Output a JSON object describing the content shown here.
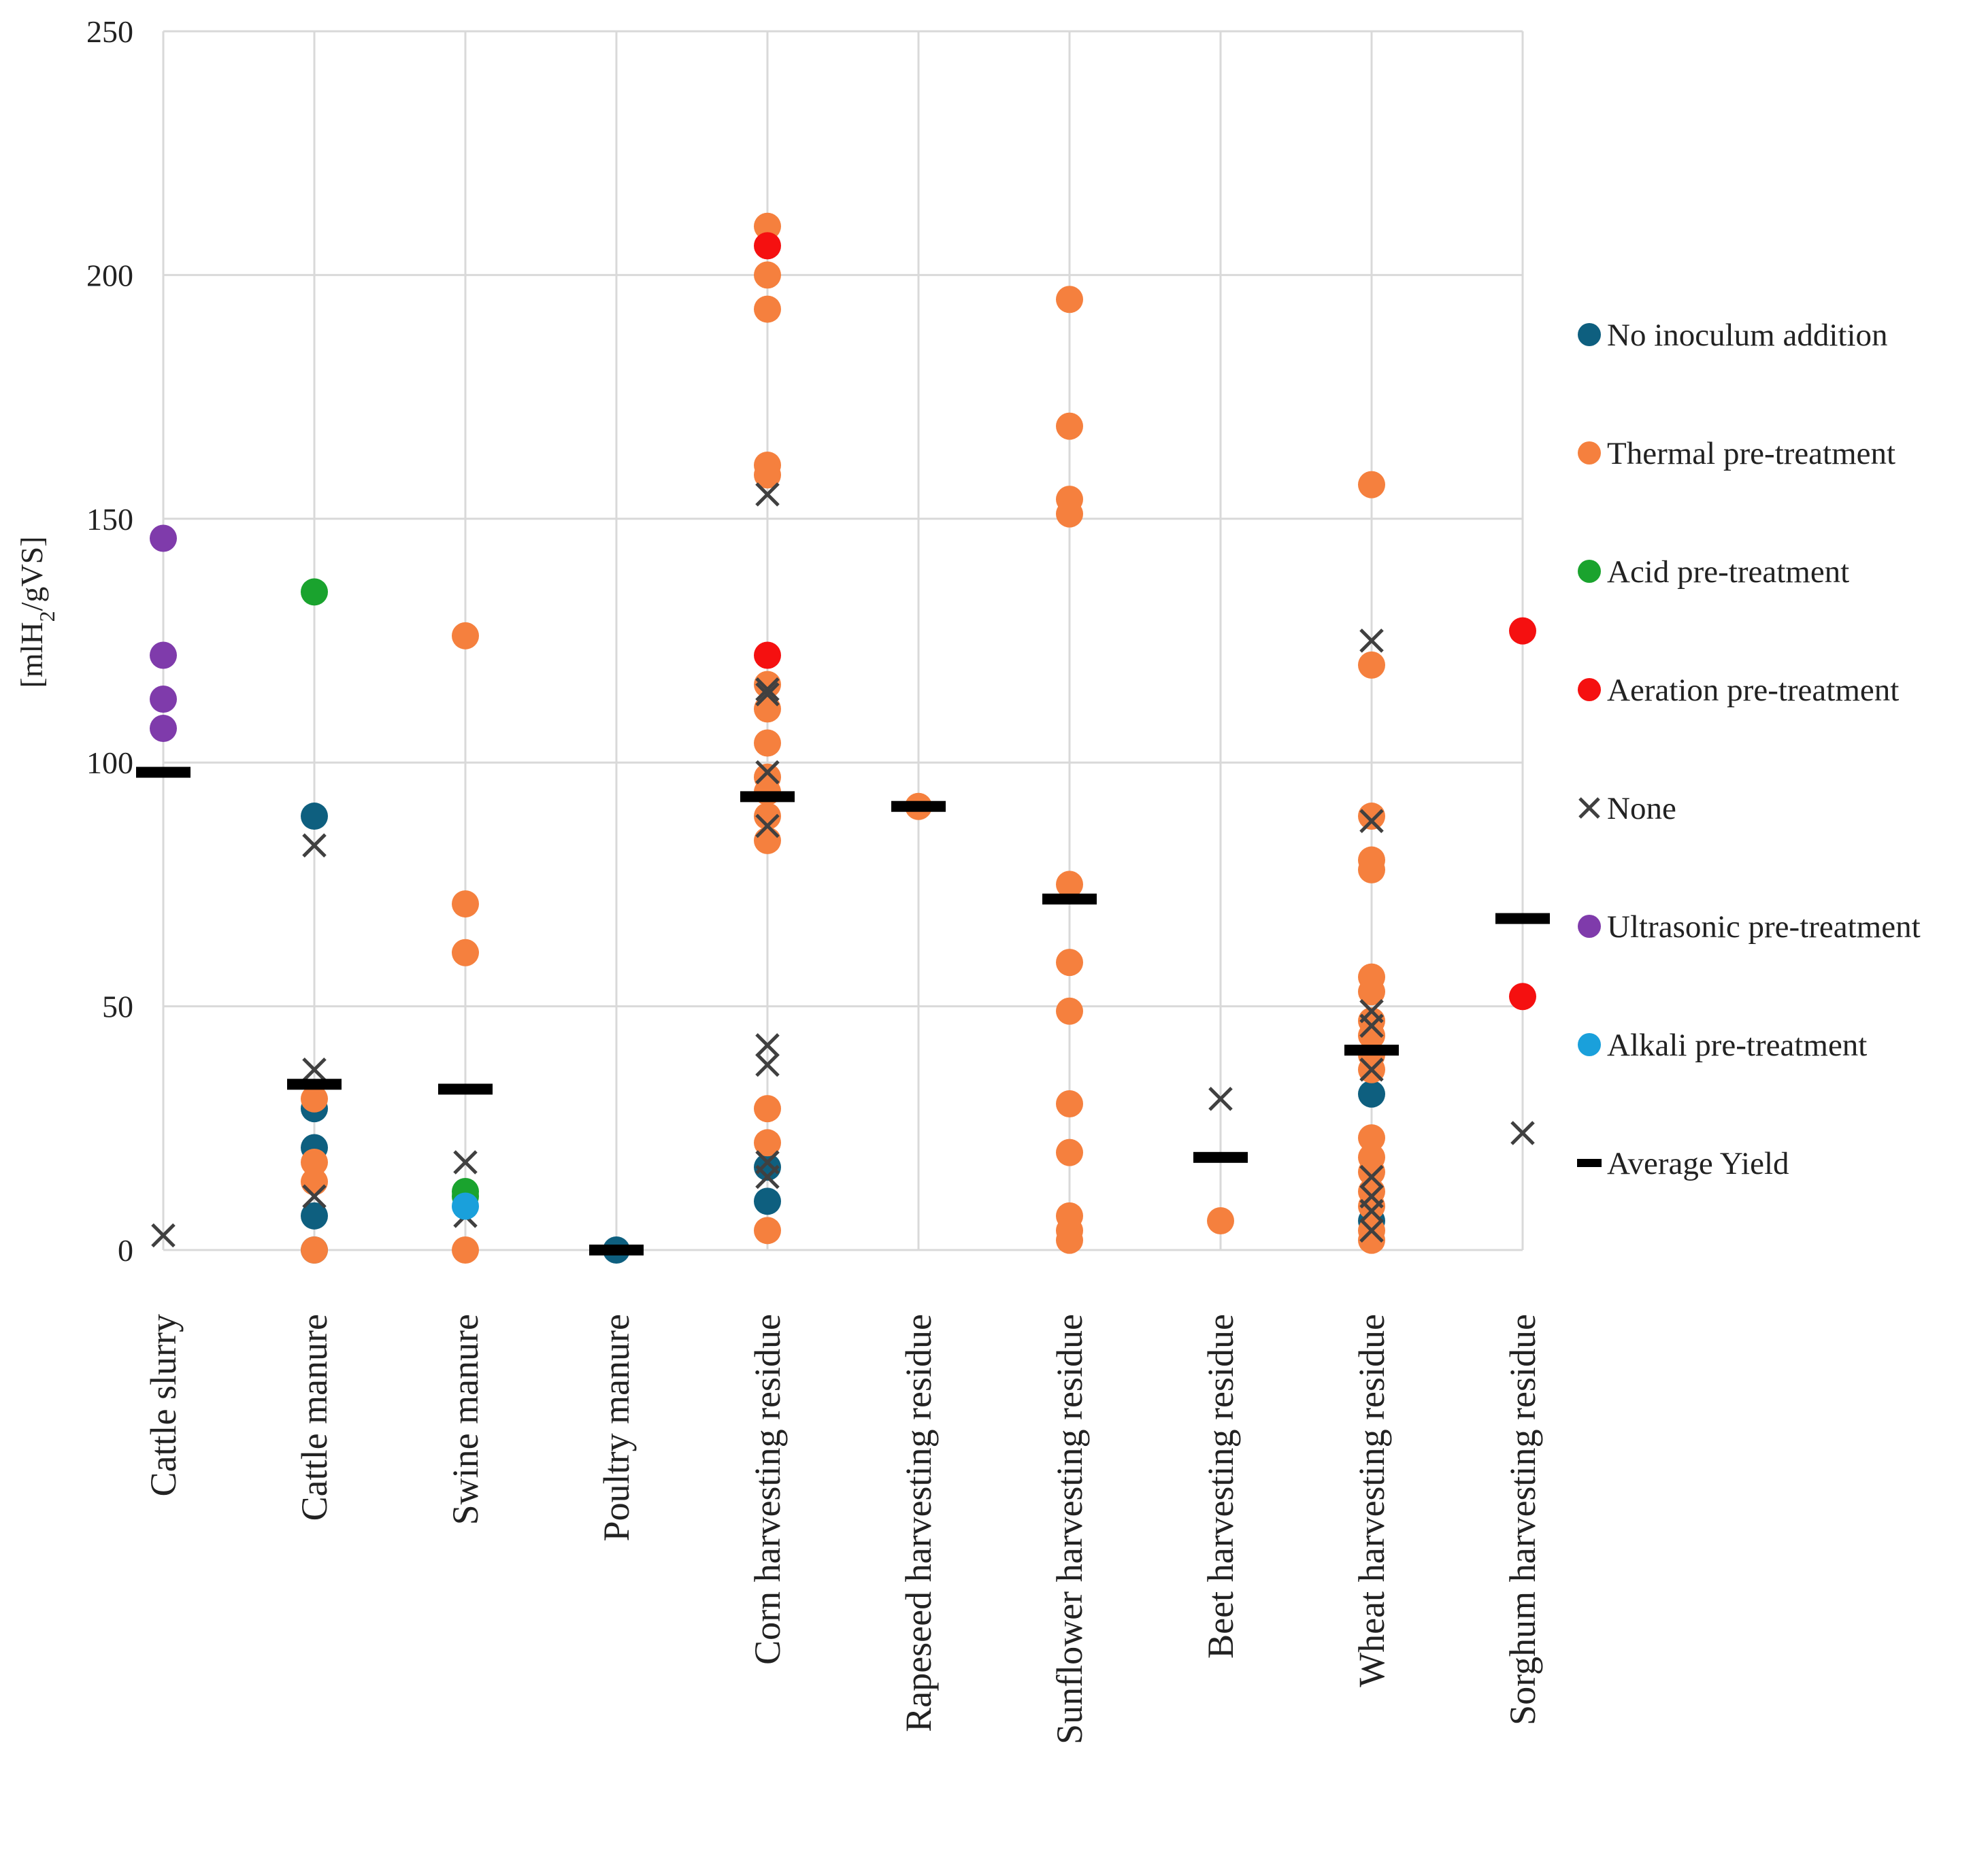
{
  "chart_data": {
    "type": "scatter",
    "title": "",
    "xlabel": "",
    "ylabel_prefix": "[mlH",
    "ylabel_sub": "2",
    "ylabel_suffix": "/gVS]",
    "ylim": [
      0,
      250
    ],
    "yticks": [
      0,
      50,
      100,
      150,
      200,
      250
    ],
    "grid": true,
    "legend_position": "right",
    "categories": [
      "Cattle slurry",
      "Cattle manure",
      "Swine manure",
      "Poultry manure",
      "Corn harvesting residue",
      "Rapeseed harvesting residue",
      "Sunflower harvesting residue",
      "Beet harvesting residue",
      "Wheat harvesting residue",
      "Sorghum harvesting residue"
    ],
    "series": [
      {
        "name": "No inoculum addition",
        "marker": "circle",
        "color": "#0e5f7f",
        "points": [
          {
            "category": "Cattle manure",
            "y": 89
          },
          {
            "category": "Cattle manure",
            "y": 29
          },
          {
            "category": "Cattle manure",
            "y": 21
          },
          {
            "category": "Cattle manure",
            "y": 7
          },
          {
            "category": "Cattle manure",
            "y": 0
          },
          {
            "category": "Poultry manure",
            "y": 0
          },
          {
            "category": "Corn harvesting residue",
            "y": 17
          },
          {
            "category": "Corn harvesting residue",
            "y": 10
          },
          {
            "category": "Wheat harvesting residue",
            "y": 32
          },
          {
            "category": "Wheat harvesting residue",
            "y": 6
          }
        ]
      },
      {
        "name": "Thermal pre-treatment",
        "marker": "circle",
        "color": "#f5803e",
        "points": [
          {
            "category": "Cattle manure",
            "y": 31
          },
          {
            "category": "Cattle manure",
            "y": 18
          },
          {
            "category": "Cattle manure",
            "y": 14
          },
          {
            "category": "Cattle manure",
            "y": 0
          },
          {
            "category": "Swine manure",
            "y": 126
          },
          {
            "category": "Swine manure",
            "y": 71
          },
          {
            "category": "Swine manure",
            "y": 61
          },
          {
            "category": "Swine manure",
            "y": 0
          },
          {
            "category": "Corn harvesting residue",
            "y": 210
          },
          {
            "category": "Corn harvesting residue",
            "y": 200
          },
          {
            "category": "Corn harvesting residue",
            "y": 193
          },
          {
            "category": "Corn harvesting residue",
            "y": 161
          },
          {
            "category": "Corn harvesting residue",
            "y": 159
          },
          {
            "category": "Corn harvesting residue",
            "y": 116
          },
          {
            "category": "Corn harvesting residue",
            "y": 111
          },
          {
            "category": "Corn harvesting residue",
            "y": 104
          },
          {
            "category": "Corn harvesting residue",
            "y": 97
          },
          {
            "category": "Corn harvesting residue",
            "y": 94
          },
          {
            "category": "Corn harvesting residue",
            "y": 89
          },
          {
            "category": "Corn harvesting residue",
            "y": 84
          },
          {
            "category": "Corn harvesting residue",
            "y": 29
          },
          {
            "category": "Corn harvesting residue",
            "y": 22
          },
          {
            "category": "Corn harvesting residue",
            "y": 4
          },
          {
            "category": "Rapeseed harvesting residue",
            "y": 91
          },
          {
            "category": "Sunflower harvesting residue",
            "y": 195
          },
          {
            "category": "Sunflower harvesting residue",
            "y": 169
          },
          {
            "category": "Sunflower harvesting residue",
            "y": 154
          },
          {
            "category": "Sunflower harvesting residue",
            "y": 151
          },
          {
            "category": "Sunflower harvesting residue",
            "y": 75
          },
          {
            "category": "Sunflower harvesting residue",
            "y": 59
          },
          {
            "category": "Sunflower harvesting residue",
            "y": 49
          },
          {
            "category": "Sunflower harvesting residue",
            "y": 30
          },
          {
            "category": "Sunflower harvesting residue",
            "y": 20
          },
          {
            "category": "Sunflower harvesting residue",
            "y": 7
          },
          {
            "category": "Sunflower harvesting residue",
            "y": 4
          },
          {
            "category": "Sunflower harvesting residue",
            "y": 2
          },
          {
            "category": "Beet harvesting residue",
            "y": 6
          },
          {
            "category": "Wheat harvesting residue",
            "y": 157
          },
          {
            "category": "Wheat harvesting residue",
            "y": 120
          },
          {
            "category": "Wheat harvesting residue",
            "y": 89
          },
          {
            "category": "Wheat harvesting residue",
            "y": 80
          },
          {
            "category": "Wheat harvesting residue",
            "y": 78
          },
          {
            "category": "Wheat harvesting residue",
            "y": 56
          },
          {
            "category": "Wheat harvesting residue",
            "y": 53
          },
          {
            "category": "Wheat harvesting residue",
            "y": 47
          },
          {
            "category": "Wheat harvesting residue",
            "y": 44
          },
          {
            "category": "Wheat harvesting residue",
            "y": 40
          },
          {
            "category": "Wheat harvesting residue",
            "y": 37
          },
          {
            "category": "Wheat harvesting residue",
            "y": 23
          },
          {
            "category": "Wheat harvesting residue",
            "y": 19
          },
          {
            "category": "Wheat harvesting residue",
            "y": 16
          },
          {
            "category": "Wheat harvesting residue",
            "y": 12
          },
          {
            "category": "Wheat harvesting residue",
            "y": 9
          },
          {
            "category": "Wheat harvesting residue",
            "y": 4
          },
          {
            "category": "Wheat harvesting residue",
            "y": 2
          }
        ]
      },
      {
        "name": "Acid pre-treatment",
        "marker": "circle",
        "color": "#1aa32e",
        "points": [
          {
            "category": "Cattle manure",
            "y": 135
          },
          {
            "category": "Swine manure",
            "y": 12
          },
          {
            "category": "Swine manure",
            "y": 11
          }
        ]
      },
      {
        "name": "Aeration pre-treatment",
        "marker": "circle",
        "color": "#f51010",
        "points": [
          {
            "category": "Corn harvesting residue",
            "y": 206
          },
          {
            "category": "Corn harvesting residue",
            "y": 122
          },
          {
            "category": "Sorghum harvesting residue",
            "y": 127
          },
          {
            "category": "Sorghum harvesting residue",
            "y": 52
          }
        ]
      },
      {
        "name": "None",
        "marker": "x",
        "color": "#404040",
        "points": [
          {
            "category": "Cattle slurry",
            "y": 3
          },
          {
            "category": "Cattle manure",
            "y": 83
          },
          {
            "category": "Cattle manure",
            "y": 37
          },
          {
            "category": "Cattle manure",
            "y": 11
          },
          {
            "category": "Swine manure",
            "y": 18
          },
          {
            "category": "Swine manure",
            "y": 7
          },
          {
            "category": "Corn harvesting residue",
            "y": 155
          },
          {
            "category": "Corn harvesting residue",
            "y": 115
          },
          {
            "category": "Corn harvesting residue",
            "y": 114
          },
          {
            "category": "Corn harvesting residue",
            "y": 98
          },
          {
            "category": "Corn harvesting residue",
            "y": 87
          },
          {
            "category": "Corn harvesting residue",
            "y": 42
          },
          {
            "category": "Corn harvesting residue",
            "y": 38
          },
          {
            "category": "Corn harvesting residue",
            "y": 18
          },
          {
            "category": "Corn harvesting residue",
            "y": 15
          },
          {
            "category": "Beet harvesting residue",
            "y": 31
          },
          {
            "category": "Wheat harvesting residue",
            "y": 125
          },
          {
            "category": "Wheat harvesting residue",
            "y": 88
          },
          {
            "category": "Wheat harvesting residue",
            "y": 49
          },
          {
            "category": "Wheat harvesting residue",
            "y": 46
          },
          {
            "category": "Wheat harvesting residue",
            "y": 37
          },
          {
            "category": "Wheat harvesting residue",
            "y": 15
          },
          {
            "category": "Wheat harvesting residue",
            "y": 11
          },
          {
            "category": "Wheat harvesting residue",
            "y": 8
          },
          {
            "category": "Wheat harvesting residue",
            "y": 4
          },
          {
            "category": "Sorghum harvesting residue",
            "y": 24
          }
        ]
      },
      {
        "name": "Ultrasonic pre-treatment",
        "marker": "circle",
        "color": "#7f3bab",
        "points": [
          {
            "category": "Cattle slurry",
            "y": 146
          },
          {
            "category": "Cattle slurry",
            "y": 122
          },
          {
            "category": "Cattle slurry",
            "y": 113
          },
          {
            "category": "Cattle slurry",
            "y": 107
          }
        ]
      },
      {
        "name": "Alkali pre-treatment",
        "marker": "circle",
        "color": "#1aa0db",
        "points": [
          {
            "category": "Swine manure",
            "y": 9
          }
        ]
      },
      {
        "name": "Average Yield",
        "marker": "dash",
        "color": "#000000",
        "points": [
          {
            "category": "Cattle slurry",
            "y": 98
          },
          {
            "category": "Cattle manure",
            "y": 34
          },
          {
            "category": "Swine manure",
            "y": 33
          },
          {
            "category": "Poultry manure",
            "y": 0
          },
          {
            "category": "Corn harvesting residue",
            "y": 93
          },
          {
            "category": "Rapeseed harvesting residue",
            "y": 91
          },
          {
            "category": "Sunflower harvesting residue",
            "y": 72
          },
          {
            "category": "Beet harvesting residue",
            "y": 19
          },
          {
            "category": "Wheat harvesting residue",
            "y": 41
          },
          {
            "category": "Sorghum harvesting residue",
            "y": 68
          }
        ]
      }
    ]
  }
}
